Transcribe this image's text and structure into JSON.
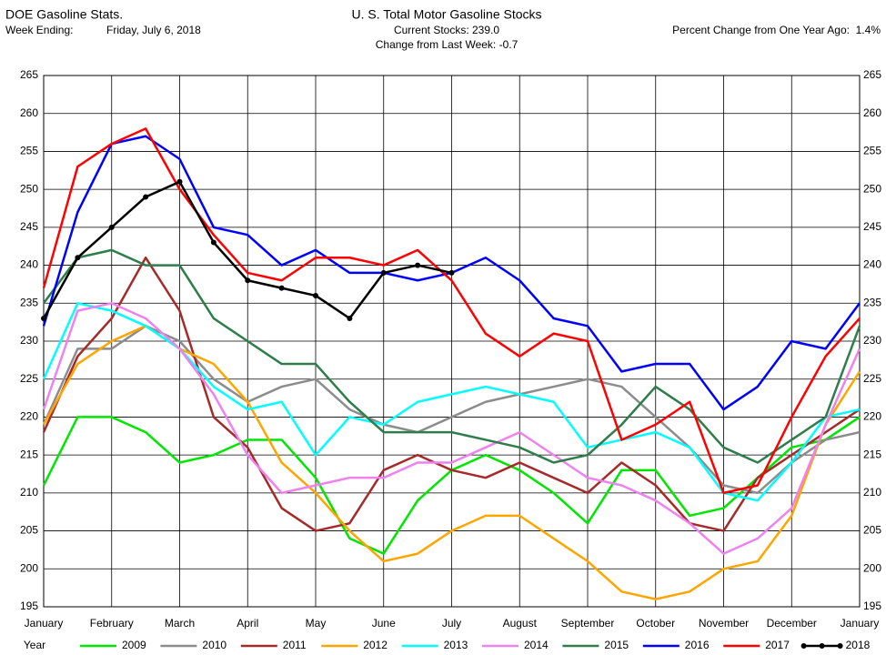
{
  "chart_data": {
    "type": "line",
    "header": {
      "left_title": "DOE Gasoline Stats.",
      "week_label": "Week Ending:",
      "week_date": "Friday, July 6, 2018",
      "current": "Current Stocks: 239.0",
      "change": "Change from Last Week: -0.7",
      "percent": "Percent Change from One Year Ago:  1.4%"
    },
    "title": "U. S. Total Motor Gasoline Stocks",
    "legend_title": "Year",
    "x": [
      0,
      0.5,
      1,
      1.5,
      2,
      2.5,
      3,
      3.5,
      4,
      4.5,
      5,
      5.5,
      6,
      6.5,
      7,
      7.5,
      8,
      8.5,
      9,
      9.5,
      10,
      10.5,
      11,
      11.5,
      12
    ],
    "xlim": [
      0,
      12
    ],
    "xticks": [
      {
        "value": 0,
        "label": "January"
      },
      {
        "value": 1,
        "label": "February"
      },
      {
        "value": 2,
        "label": "March"
      },
      {
        "value": 3,
        "label": "April"
      },
      {
        "value": 4,
        "label": "May"
      },
      {
        "value": 5,
        "label": "June"
      },
      {
        "value": 6,
        "label": "July"
      },
      {
        "value": 7,
        "label": "August"
      },
      {
        "value": 8,
        "label": "September"
      },
      {
        "value": 9,
        "label": "October"
      },
      {
        "value": 10,
        "label": "November"
      },
      {
        "value": 11,
        "label": "December"
      },
      {
        "value": 12,
        "label": "January"
      }
    ],
    "ylim": [
      195,
      265
    ],
    "yticks": [
      195,
      200,
      205,
      210,
      215,
      220,
      225,
      230,
      235,
      240,
      245,
      250,
      255,
      260,
      265
    ],
    "grid": true,
    "series": [
      {
        "name": "2009",
        "color": "#00e600",
        "values": [
          211,
          220,
          220,
          218,
          214,
          215,
          217,
          217,
          212,
          204,
          202,
          209,
          213,
          215,
          213,
          210,
          206,
          213,
          213,
          207,
          208,
          212,
          216,
          217,
          220
        ]
      },
      {
        "name": "2010",
        "color": "#8c8c8c",
        "values": [
          219,
          229,
          229,
          232,
          230,
          225,
          222,
          224,
          225,
          221,
          219,
          218,
          220,
          222,
          223,
          224,
          225,
          224,
          220,
          216,
          211,
          210,
          214,
          217,
          218
        ]
      },
      {
        "name": "2011",
        "color": "#a52a2a",
        "values": [
          218,
          228,
          233,
          241,
          234,
          220,
          216,
          208,
          205,
          206,
          213,
          215,
          213,
          212,
          214,
          212,
          210,
          214,
          211,
          206,
          205,
          212,
          215,
          218,
          221
        ]
      },
      {
        "name": "2012",
        "color": "#ffa500",
        "values": [
          219,
          227,
          230,
          232,
          229,
          227,
          222,
          214,
          210,
          205,
          201,
          202,
          205,
          207,
          207,
          204,
          201,
          197,
          196,
          197,
          200,
          201,
          207,
          219,
          226
        ]
      },
      {
        "name": "2013",
        "color": "#00ffff",
        "values": [
          225,
          235,
          234,
          232,
          229,
          224,
          221,
          222,
          215,
          220,
          219,
          222,
          223,
          224,
          223,
          222,
          216,
          217,
          218,
          216,
          210,
          209,
          214,
          220,
          221
        ]
      },
      {
        "name": "2014",
        "color": "#ee82ee",
        "values": [
          221,
          234,
          235,
          233,
          229,
          223,
          215,
          210,
          211,
          212,
          212,
          214,
          214,
          216,
          218,
          215,
          212,
          211,
          209,
          206,
          202,
          204,
          208,
          219,
          229
        ]
      },
      {
        "name": "2015",
        "color": "#2e7d4a",
        "values": [
          235,
          241,
          242,
          240,
          240,
          233,
          230,
          227,
          227,
          222,
          218,
          218,
          218,
          217,
          216,
          214,
          215,
          219,
          224,
          221,
          216,
          214,
          217,
          220,
          232
        ]
      },
      {
        "name": "2016",
        "color": "#0000ff",
        "values": [
          232,
          247,
          256,
          257,
          254,
          245,
          244,
          240,
          242,
          239,
          239,
          238,
          239,
          241,
          238,
          233,
          232,
          226,
          227,
          227,
          221,
          224,
          230,
          229,
          235
        ]
      },
      {
        "name": "2017",
        "color": "#ff0000",
        "values": [
          237,
          253,
          256,
          258,
          250,
          244,
          239,
          238,
          241,
          241,
          240,
          242,
          238,
          231,
          228,
          231,
          230,
          217,
          219,
          222,
          210,
          211,
          220,
          228,
          233
        ]
      },
      {
        "name": "2018",
        "color": "#000000",
        "markers": true,
        "values": [
          233,
          241,
          245,
          249,
          251,
          243,
          238,
          237,
          236,
          233,
          239,
          240,
          239,
          null,
          null,
          null,
          null,
          null,
          null,
          null,
          null,
          null,
          null,
          null,
          null
        ]
      }
    ]
  }
}
